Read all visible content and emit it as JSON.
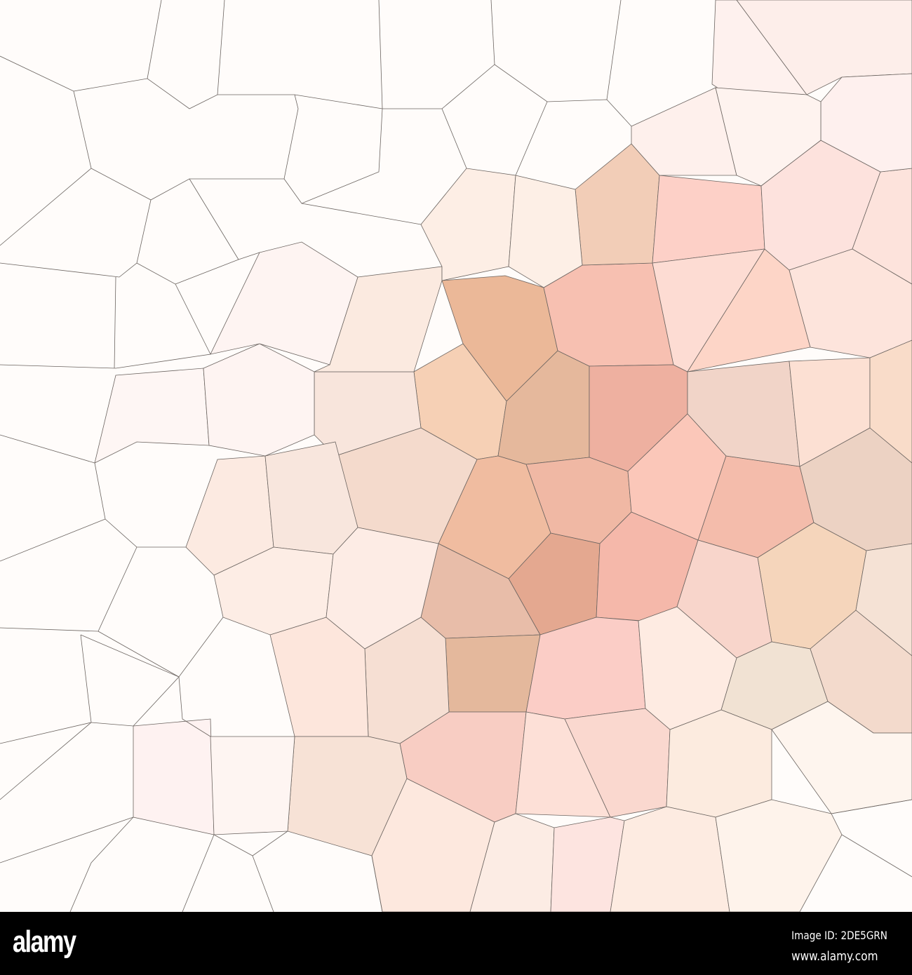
{
  "footer": {
    "logo": "alamy",
    "image_id": "Image ID: 2DE5GRN",
    "url": "www.alamy.com"
  },
  "artwork": {
    "style": "low-poly voronoi mosaic",
    "background_color": "#fffcfa",
    "edge_color": "#6b6460",
    "palette": [
      "#ebb898",
      "#f6d0b5",
      "#e5b89c",
      "#f7c0b1",
      "#eeb0a0",
      "#e4a890",
      "#fbc7b9",
      "#f5b8aa",
      "#fdd0c7",
      "#f1d4c8",
      "#f5d5bb",
      "#fef0ec"
    ]
  }
}
